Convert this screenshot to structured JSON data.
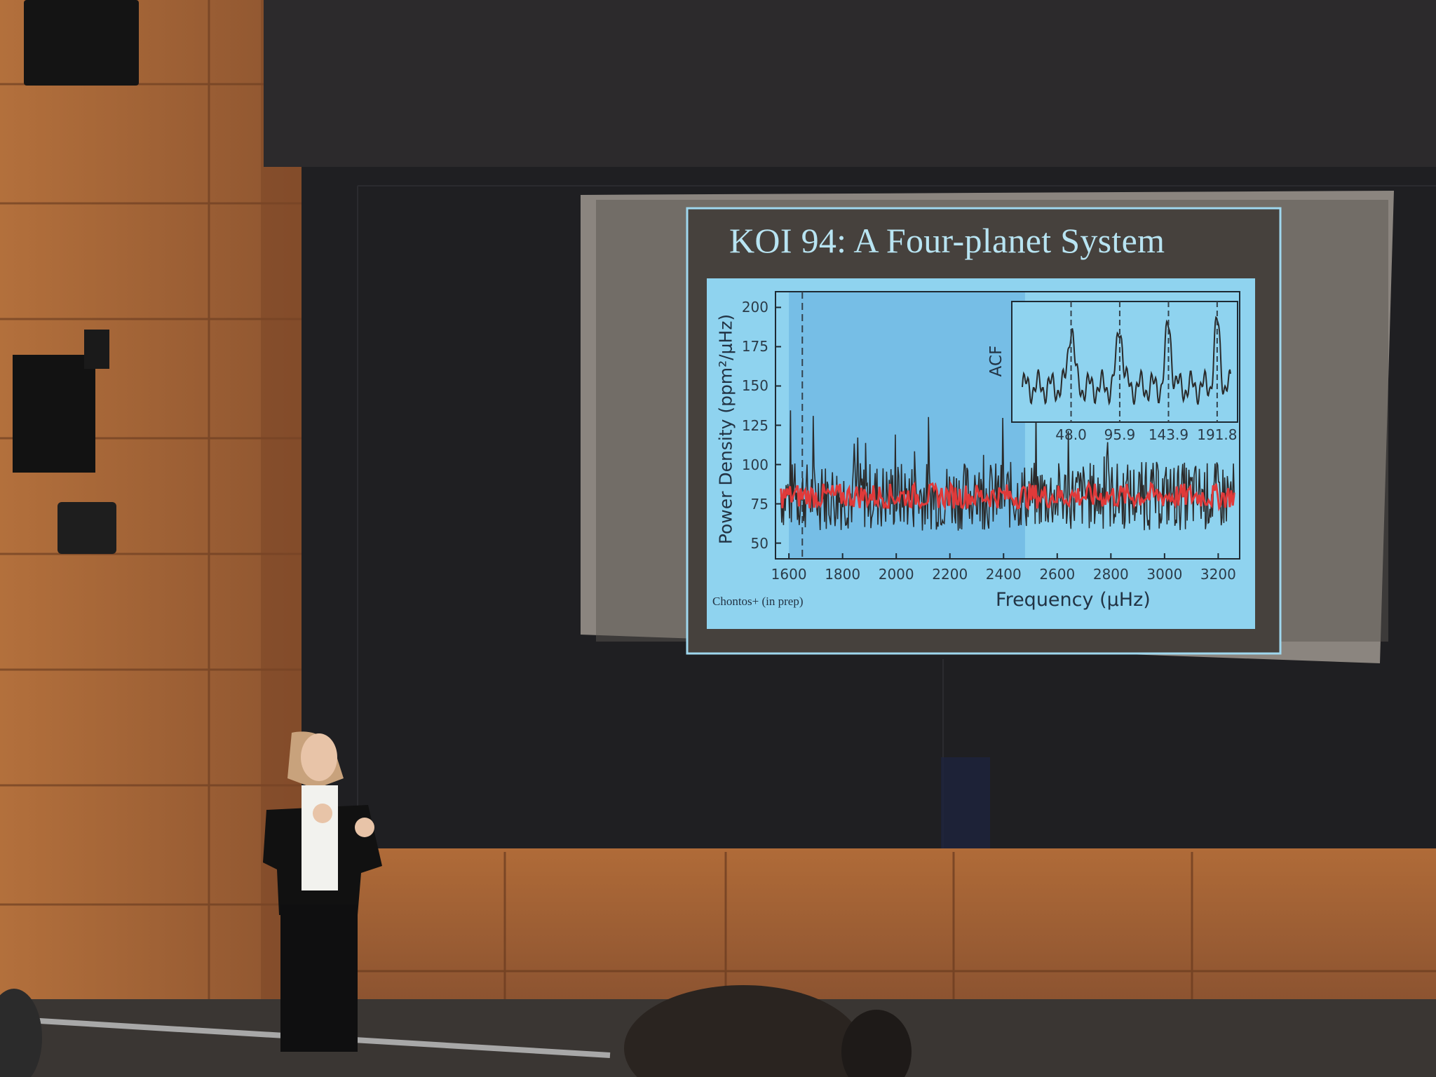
{
  "slide": {
    "title": "KOI 94: A Four-planet System",
    "credit": "Chontos+ (in prep)"
  },
  "chart_data": {
    "type": "line",
    "xlabel": "Frequency (μHz)",
    "ylabel": "Power Density (ppm²/μHz)",
    "xlim": [
      1550,
      3280
    ],
    "ylim": [
      40,
      210
    ],
    "x_ticks": [
      1600,
      1800,
      2000,
      2200,
      2400,
      2600,
      2800,
      3000,
      3200
    ],
    "y_ticks": [
      50,
      75,
      100,
      125,
      150,
      175,
      200
    ],
    "highlight_range": [
      1600,
      2480
    ],
    "vertical_lines": [
      1650
    ],
    "series": [
      {
        "color": "#2a2a2a",
        "baseline": 80,
        "spread": 22
      },
      {
        "color": "#e03a3a",
        "baseline": 80,
        "spread": 8
      }
    ],
    "inset": {
      "ylabel": "ACF",
      "x_ticks": [
        "48.0",
        "95.9",
        "143.9",
        "191.8"
      ],
      "peak_lags": [
        48.0,
        95.9,
        143.9,
        191.8
      ]
    }
  },
  "colors": {
    "slide_frame": "#4a4440",
    "plot_bg": "#8fd3ef",
    "highlight": "#6fb9e3",
    "title": "#b8e4f2",
    "raw_series": "#2a2a2a",
    "smooth_series": "#e03a3a"
  }
}
